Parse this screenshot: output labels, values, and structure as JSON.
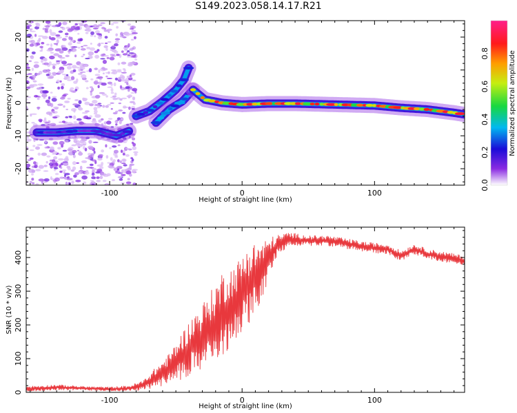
{
  "figure_title": "S149.2023.058.14.17.R21",
  "chart_data": [
    {
      "type": "heatmap",
      "title": "",
      "xlabel": "Height of straight line (km)",
      "ylabel": "Frequency (Hz)",
      "xlim": [
        -163,
        168
      ],
      "ylim": [
        -25,
        25
      ],
      "xticks": [
        -100,
        0,
        100
      ],
      "yticks": [
        -20,
        -10,
        0,
        10,
        20
      ],
      "colorbar": {
        "label": "Normalized spectral amplitude",
        "range": [
          0,
          1
        ],
        "ticks": [
          "0.0",
          "0.2",
          "0.4",
          "0.6",
          "0.8"
        ],
        "colormap": "rainbow (white-violet-blue-cyan-green-yellow-orange-red-magenta)"
      },
      "ridges": [
        {
          "x": [
            -155,
            -140,
            -125,
            -110,
            -95,
            -85
          ],
          "y": [
            -9,
            -9,
            -8.5,
            -8.5,
            -10,
            -8.5
          ],
          "amplitude": 0.2
        },
        {
          "x": [
            -80,
            -70,
            -60,
            -50,
            -44,
            -40
          ],
          "y": [
            -4,
            -2.5,
            0.5,
            4,
            7,
            11
          ],
          "amplitude": 0.3
        },
        {
          "x": [
            -65,
            -55,
            -45,
            -37
          ],
          "y": [
            -6,
            -2,
            0.5,
            4
          ],
          "amplitude": 0.35
        },
        {
          "x": [
            -37,
            -28,
            -15,
            0,
            20,
            40,
            60,
            80,
            100,
            120,
            140,
            160,
            168
          ],
          "y": [
            4,
            1,
            0,
            -0.5,
            -0.2,
            -0.2,
            -0.4,
            -0.6,
            -0.8,
            -1.5,
            -2,
            -3,
            -3.5
          ],
          "amplitude": 0.85
        }
      ],
      "noise_region": {
        "x": [
          -163,
          -80
        ],
        "y": [
          -25,
          25
        ]
      }
    },
    {
      "type": "line",
      "title": "",
      "xlabel": "Height of straight line (km)",
      "ylabel": "SNR (10 * v/v)",
      "xlim": [
        -163,
        168
      ],
      "ylim": [
        0,
        490
      ],
      "xticks": [
        -100,
        0,
        100
      ],
      "yticks": [
        0,
        100,
        200,
        300,
        400
      ],
      "color": "#e8383d",
      "x": [
        -163,
        -140,
        -120,
        -100,
        -85,
        -75,
        -65,
        -55,
        -45,
        -35,
        -25,
        -15,
        -5,
        5,
        15,
        25,
        35,
        50,
        65,
        80,
        95,
        110,
        120,
        130,
        140,
        155,
        168
      ],
      "mean": [
        10,
        15,
        12,
        10,
        12,
        20,
        45,
        70,
        110,
        150,
        180,
        230,
        270,
        320,
        360,
        430,
        455,
        450,
        450,
        440,
        430,
        425,
        405,
        425,
        410,
        400,
        390
      ],
      "spread": [
        8,
        8,
        6,
        6,
        8,
        15,
        30,
        45,
        70,
        90,
        110,
        130,
        110,
        120,
        90,
        35,
        20,
        15,
        15,
        15,
        15,
        15,
        15,
        15,
        15,
        15,
        15
      ]
    }
  ]
}
